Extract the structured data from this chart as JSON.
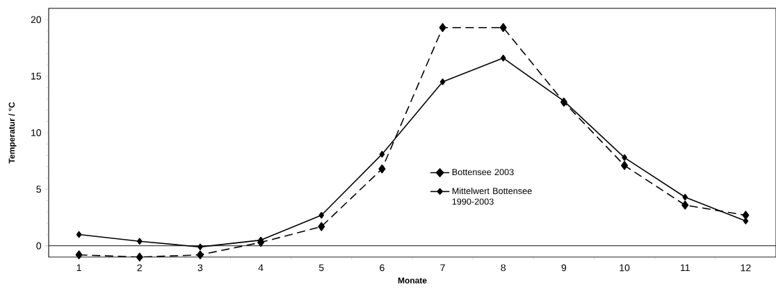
{
  "chart_data": {
    "type": "line",
    "xlabel": "Monate",
    "ylabel": "Temperatur / °C",
    "categories": [
      "1",
      "2",
      "3",
      "4",
      "5",
      "6",
      "7",
      "8",
      "9",
      "10",
      "11",
      "12"
    ],
    "series": [
      {
        "name": "Bottensee 2003",
        "color": "#000000",
        "line_style": "dashed",
        "values": [
          -0.8,
          -1.0,
          -0.8,
          0.3,
          1.7,
          6.8,
          19.3,
          19.3,
          12.7,
          7.1,
          3.6,
          2.7
        ]
      },
      {
        "name": "Mittelwert Bottensee 1990-2003",
        "color": "#000000",
        "line_style": "solid",
        "values": [
          1.0,
          0.4,
          -0.1,
          0.5,
          2.7,
          8.1,
          14.5,
          16.6,
          12.8,
          7.8,
          4.3,
          2.2
        ]
      }
    ],
    "ylim": [
      -1,
      21
    ],
    "yticks": [
      0,
      5,
      10,
      15,
      20
    ],
    "marker": "diamond",
    "legend": "center",
    "grid": false
  }
}
